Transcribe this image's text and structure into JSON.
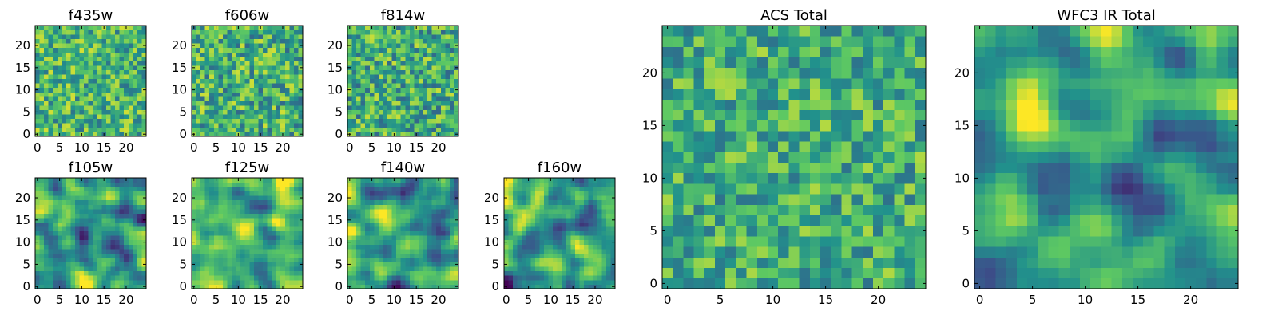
{
  "figure": {
    "colormap": [
      "#440154",
      "#3b528b",
      "#21918c",
      "#5ec962",
      "#fde725"
    ]
  },
  "chart_data": [
    {
      "type": "heatmap",
      "title": "f435w",
      "rows": 25,
      "cols": 25,
      "xticks": [
        0,
        5,
        10,
        15,
        20
      ],
      "yticks": [
        0,
        5,
        10,
        15,
        20
      ],
      "xtick_labels": [
        "0",
        "5",
        "10",
        "15",
        "20"
      ],
      "ytick_labels": [
        "0",
        "5",
        "10",
        "15",
        "20"
      ],
      "xlim": [
        -0.5,
        24.5
      ],
      "ylim": [
        -0.5,
        24.5
      ],
      "smoothness": 0,
      "mean": 0.66,
      "spread": 0.16
    },
    {
      "type": "heatmap",
      "title": "f606w",
      "rows": 25,
      "cols": 25,
      "xticks": [
        0,
        5,
        10,
        15,
        20
      ],
      "yticks": [
        0,
        5,
        10,
        15,
        20
      ],
      "xtick_labels": [
        "0",
        "5",
        "10",
        "15",
        "20"
      ],
      "ytick_labels": [
        "0",
        "5",
        "10",
        "15",
        "20"
      ],
      "xlim": [
        -0.5,
        24.5
      ],
      "ylim": [
        -0.5,
        24.5
      ],
      "smoothness": 0,
      "mean": 0.64,
      "spread": 0.17
    },
    {
      "type": "heatmap",
      "title": "f814w",
      "rows": 25,
      "cols": 25,
      "xticks": [
        0,
        5,
        10,
        15,
        20
      ],
      "yticks": [
        0,
        5,
        10,
        15,
        20
      ],
      "xtick_labels": [
        "0",
        "5",
        "10",
        "15",
        "20"
      ],
      "ytick_labels": [
        "0",
        "5",
        "10",
        "15",
        "20"
      ],
      "xlim": [
        -0.5,
        24.5
      ],
      "ylim": [
        -0.5,
        24.5
      ],
      "smoothness": 0,
      "mean": 0.63,
      "spread": 0.17
    },
    {
      "type": "heatmap",
      "title": "f105w",
      "rows": 25,
      "cols": 25,
      "xticks": [
        0,
        5,
        10,
        15,
        20
      ],
      "yticks": [
        0,
        5,
        10,
        15,
        20
      ],
      "xtick_labels": [
        "0",
        "5",
        "10",
        "15",
        "20"
      ],
      "ytick_labels": [
        "0",
        "5",
        "10",
        "15",
        "20"
      ],
      "xlim": [
        -0.5,
        24.5
      ],
      "ylim": [
        -0.5,
        24.5
      ],
      "smoothness": 2,
      "mean": 0.55,
      "spread": 0.18
    },
    {
      "type": "heatmap",
      "title": "f125w",
      "rows": 25,
      "cols": 25,
      "xticks": [
        0,
        5,
        10,
        15,
        20
      ],
      "yticks": [
        0,
        5,
        10,
        15,
        20
      ],
      "xtick_labels": [
        "0",
        "5",
        "10",
        "15",
        "20"
      ],
      "ytick_labels": [
        "0",
        "5",
        "10",
        "15",
        "20"
      ],
      "xlim": [
        -0.5,
        24.5
      ],
      "ylim": [
        -0.5,
        24.5
      ],
      "smoothness": 2,
      "mean": 0.66,
      "spread": 0.15
    },
    {
      "type": "heatmap",
      "title": "f140w",
      "rows": 25,
      "cols": 25,
      "xticks": [
        0,
        5,
        10,
        15,
        20
      ],
      "yticks": [
        0,
        5,
        10,
        15,
        20
      ],
      "xtick_labels": [
        "0",
        "5",
        "10",
        "15",
        "20"
      ],
      "ytick_labels": [
        "0",
        "5",
        "10",
        "15",
        "20"
      ],
      "xlim": [
        -0.5,
        24.5
      ],
      "ylim": [
        -0.5,
        24.5
      ],
      "smoothness": 2,
      "mean": 0.56,
      "spread": 0.18
    },
    {
      "type": "heatmap",
      "title": "f160w",
      "rows": 25,
      "cols": 25,
      "xticks": [
        0,
        5,
        10,
        15,
        20
      ],
      "yticks": [
        0,
        5,
        10,
        15,
        20
      ],
      "xtick_labels": [
        "0",
        "5",
        "10",
        "15",
        "20"
      ],
      "ytick_labels": [
        "0",
        "5",
        "10",
        "15",
        "20"
      ],
      "xlim": [
        -0.5,
        24.5
      ],
      "ylim": [
        -0.5,
        24.5
      ],
      "smoothness": 2,
      "mean": 0.57,
      "spread": 0.18
    },
    {
      "type": "heatmap",
      "title": "ACS Total",
      "rows": 25,
      "cols": 25,
      "xticks": [
        0,
        5,
        10,
        15,
        20
      ],
      "yticks": [
        0,
        5,
        10,
        15,
        20
      ],
      "xtick_labels": [
        "0",
        "5",
        "10",
        "15",
        "20"
      ],
      "ytick_labels": [
        "0",
        "5",
        "10",
        "15",
        "20"
      ],
      "xlim": [
        -0.5,
        24.5
      ],
      "ylim": [
        -0.5,
        24.5
      ],
      "smoothness": 0,
      "mean": 0.62,
      "spread": 0.15
    },
    {
      "type": "heatmap",
      "title": "WFC3 IR Total",
      "rows": 25,
      "cols": 25,
      "xticks": [
        0,
        5,
        10,
        15,
        20
      ],
      "yticks": [
        0,
        5,
        10,
        15,
        20
      ],
      "xtick_labels": [
        "0",
        "5",
        "10",
        "15",
        "20"
      ],
      "ytick_labels": [
        "0",
        "5",
        "10",
        "15",
        "20"
      ],
      "xlim": [
        -0.5,
        24.5
      ],
      "ylim": [
        -0.5,
        24.5
      ],
      "smoothness": 2,
      "mean": 0.56,
      "spread": 0.16
    }
  ]
}
